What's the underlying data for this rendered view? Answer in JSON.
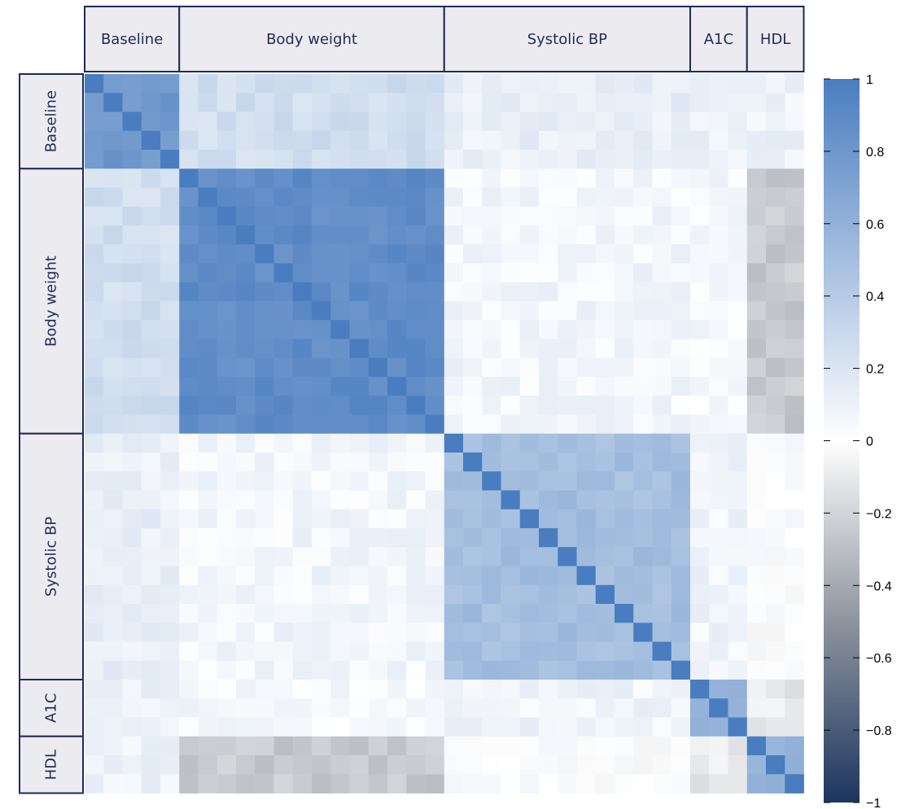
{
  "chart_data": {
    "type": "heatmap",
    "title": "",
    "groups": [
      {
        "name": "Baseline",
        "n": 5
      },
      {
        "name": "Body weight",
        "n": 14
      },
      {
        "name": "Systolic BP",
        "n": 13
      },
      {
        "name": "A1C",
        "n": 3
      },
      {
        "name": "HDL",
        "n": 3
      }
    ],
    "block_correlation": [
      [
        0.8,
        0.25,
        0.12,
        0.1,
        0.1
      ],
      [
        0.25,
        0.88,
        0.07,
        0.05,
        -0.25
      ],
      [
        0.12,
        0.07,
        0.5,
        0.08,
        0.01
      ],
      [
        0.1,
        0.05,
        0.08,
        0.55,
        -0.1
      ],
      [
        0.1,
        -0.25,
        0.01,
        -0.1,
        0.6
      ]
    ],
    "diagonal": 1,
    "colorbar": {
      "min": -1,
      "max": 1,
      "ticks": [
        "1",
        "0.8",
        "0.6",
        "0.4",
        "0.2",
        "0",
        "−0.2",
        "−0.4",
        "−0.6",
        "−0.8",
        "−1"
      ],
      "colors": {
        "negative": "#1c355e",
        "zero": "#ffffff",
        "positive": "#4a7dbf"
      }
    }
  },
  "colors": {
    "header_bg": "#ececf0",
    "header_border": "#1f2a5a",
    "header_text": "#1f2a5a",
    "negative_mid": "#8e949e",
    "neutral": "#ffffff",
    "positive": "#4a7dbf"
  }
}
